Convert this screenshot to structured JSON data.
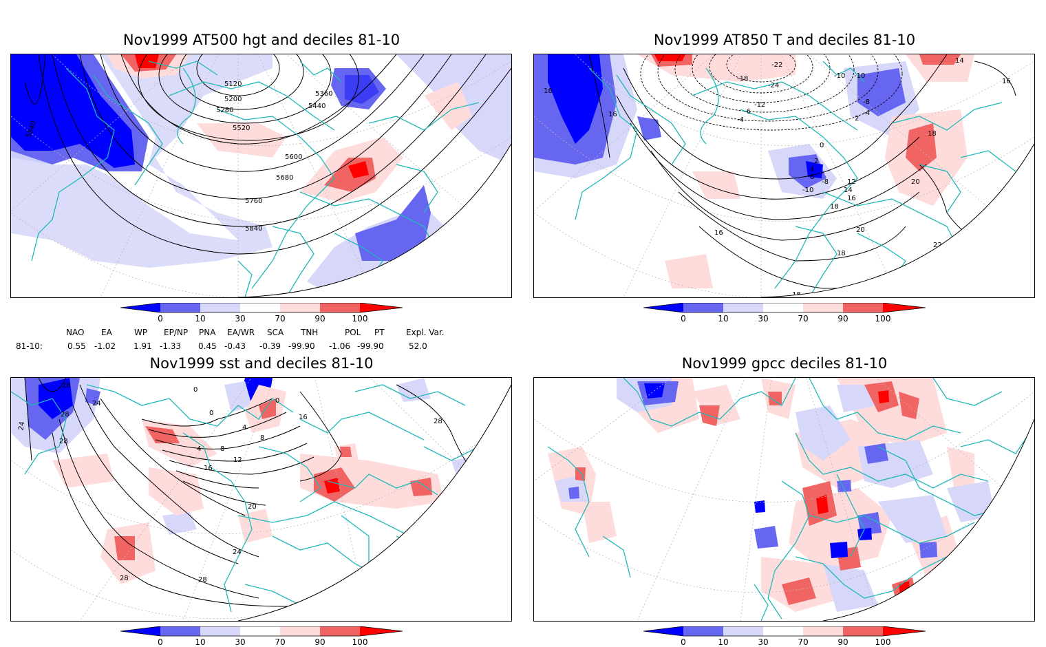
{
  "panels": [
    {
      "title": "Nov1999 AT500 hgt and deciles 81-10"
    },
    {
      "title": "Nov1999 AT850 T and deciles 81-10"
    },
    {
      "title": "Nov1999 sst and deciles 81-10"
    },
    {
      "title": "Nov1999 gpcc deciles 81-10"
    }
  ],
  "colorbar": {
    "ticks": [
      "0",
      "10",
      "30",
      "70",
      "90",
      "100"
    ],
    "colors": {
      "d0": "#0000ff",
      "d10": "#6666f0",
      "d30": "#d7d7fa",
      "d70": "#ffdcdc",
      "d90": "#f06464",
      "d100": "#ff0000"
    }
  },
  "contour_labels": {
    "p1": [
      "5120",
      "5200",
      "5280",
      "5360",
      "5440",
      "5520",
      "5600",
      "5680",
      "5760",
      "5840",
      "5840"
    ],
    "p2": [
      "-22",
      "-18",
      "-24",
      "-12",
      "-10",
      "-10",
      "-8",
      "-6",
      "-4",
      "-4",
      "2",
      "0",
      "2",
      "4",
      "6",
      "-8",
      "-10",
      "12",
      "14",
      "16",
      "18",
      "18",
      "20",
      "20",
      "22",
      "18",
      "18",
      "16",
      "16",
      "16",
      "14",
      "16"
    ],
    "p3": [
      "28",
      "28",
      "24",
      "24",
      "28",
      "0",
      "0",
      "0",
      "4",
      "4",
      "8",
      "8",
      "12",
      "16",
      "20",
      "24",
      "28",
      "28",
      "28",
      "28",
      "16"
    ]
  },
  "indices": {
    "row_label": "81-10:",
    "headers": [
      "NAO",
      "EA",
      "WP",
      "EP/NP",
      "PNA",
      "EA/WR",
      "SCA",
      "TNH",
      "POL",
      "PT",
      "Expl. Var."
    ],
    "values": [
      "0.55",
      "-1.02",
      "1.91",
      "-1.33",
      "0.45",
      "-0.43",
      "-0.39",
      "-99.90",
      "-1.06",
      "-99.90",
      "52.0"
    ]
  },
  "colors": {
    "coastline": "#20b8b8",
    "contour": "#000000",
    "grid": "#b8b8b8"
  }
}
